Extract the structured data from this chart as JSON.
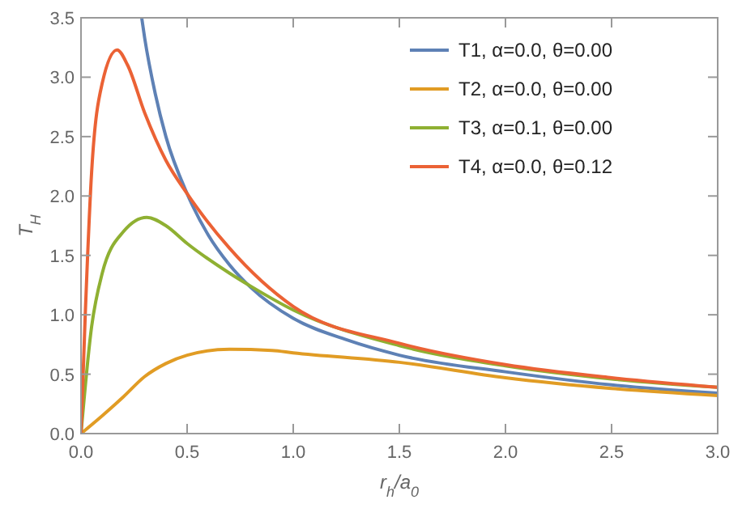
{
  "chart_data": {
    "type": "line",
    "xlabel": "r$_{h}$/a$_{0}$",
    "ylabel": "T$_{H}$",
    "xlim": [
      0,
      3
    ],
    "ylim": [
      0,
      3.5
    ],
    "xticks": [
      {
        "value": 0,
        "label": "0.0"
      },
      0.5,
      {
        "value": 1,
        "label": "1.0"
      },
      1.5,
      {
        "value": 2,
        "label": "2.0"
      },
      2.5,
      {
        "value": 3,
        "label": "3.0"
      }
    ],
    "yticks": [
      {
        "value": 0,
        "label": "0.0"
      },
      0.5,
      {
        "value": 1,
        "label": "1.0"
      },
      1.5,
      {
        "value": 2,
        "label": "2.0"
      },
      2.5,
      {
        "value": 3,
        "label": "3.0"
      },
      3.5
    ],
    "grid": false,
    "legend": "top right",
    "marker": "none",
    "line_style": "solid",
    "series": [
      {
        "name": "T1, α=0.0, θ=0.00",
        "color": "#5e81b5",
        "x": [
          0.286,
          0.3,
          0.35,
          0.4,
          0.5,
          0.6,
          0.7,
          0.8,
          1.0,
          1.25,
          1.5,
          2.0,
          2.5,
          3.0
        ],
        "values": [
          3.5,
          3.33,
          2.86,
          2.5,
          2.02,
          1.67,
          1.42,
          1.23,
          0.97,
          0.79,
          0.66,
          0.52,
          0.41,
          0.34
        ]
      },
      {
        "name": "T2, α=0.0, θ=0.00",
        "color": "#e19c24",
        "x": [
          0,
          0.1,
          0.2,
          0.3,
          0.4,
          0.5,
          0.7,
          0.9,
          1.0,
          1.5,
          2.0,
          2.5,
          3.0
        ],
        "values": [
          0,
          0.15,
          0.31,
          0.48,
          0.59,
          0.66,
          0.71,
          0.7,
          0.68,
          0.6,
          0.47,
          0.38,
          0.32
        ]
      },
      {
        "name": "T3, α=0.1, θ=0.00",
        "color": "#8fb032",
        "x": [
          0,
          0.05,
          0.1,
          0.2,
          0.31,
          0.4,
          0.5,
          0.7,
          0.8,
          1.0,
          1.5,
          2.0,
          2.5,
          3.0
        ],
        "values": [
          0,
          0.9,
          1.35,
          1.7,
          1.82,
          1.75,
          1.6,
          1.35,
          1.24,
          1.04,
          0.74,
          0.57,
          0.46,
          0.39
        ]
      },
      {
        "name": "T4, α=0.0, θ=0.12",
        "color": "#eb6235",
        "x": [
          0,
          0.02,
          0.05,
          0.1,
          0.17,
          0.22,
          0.3,
          0.4,
          0.5,
          0.7,
          1.0,
          1.5,
          2.0,
          2.5,
          3.0
        ],
        "values": [
          0,
          1.0,
          2.2,
          2.95,
          3.23,
          3.1,
          2.7,
          2.3,
          2.02,
          1.56,
          1.07,
          0.76,
          0.58,
          0.47,
          0.39
        ]
      }
    ]
  }
}
